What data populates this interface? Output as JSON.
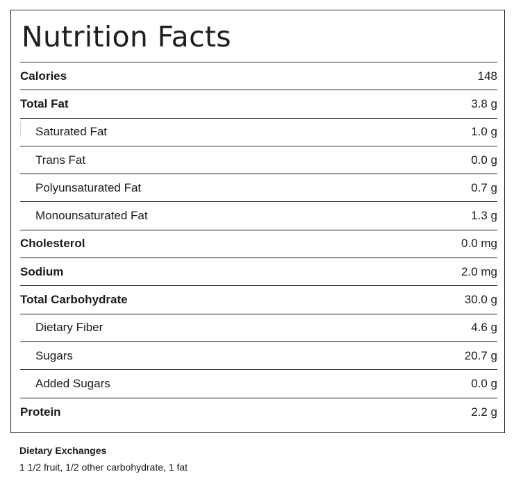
{
  "panel": {
    "title": "Nutrition Facts",
    "rows": [
      {
        "label": "Calories",
        "value": "148",
        "style": "bold"
      },
      {
        "label": "Total Fat",
        "value": "3.8 g",
        "style": "bold"
      },
      {
        "label": "Saturated Fat",
        "value": "1.0 g",
        "style": "sub"
      },
      {
        "label": "Trans Fat",
        "value": "0.0 g",
        "style": "sub"
      },
      {
        "label": "Polyunsaturated Fat",
        "value": "0.7 g",
        "style": "sub"
      },
      {
        "label": "Monounsaturated Fat",
        "value": "1.3 g",
        "style": "sub"
      },
      {
        "label": "Cholesterol",
        "value": "0.0 mg",
        "style": "bold"
      },
      {
        "label": "Sodium",
        "value": "2.0 mg",
        "style": "bold"
      },
      {
        "label": "Total Carbohydrate",
        "value": "30.0 g",
        "style": "bold"
      },
      {
        "label": "Dietary Fiber",
        "value": "4.6 g",
        "style": "sub"
      },
      {
        "label": "Sugars",
        "value": "20.7 g",
        "style": "sub"
      },
      {
        "label": "Added Sugars",
        "value": "0.0 g",
        "style": "sub"
      },
      {
        "label": "Protein",
        "value": "2.2 g",
        "style": "bold"
      }
    ]
  },
  "exchanges": {
    "heading": "Dietary Exchanges",
    "text": "1 1/2 fruit, 1/2 other carbohydrate, 1 fat"
  }
}
